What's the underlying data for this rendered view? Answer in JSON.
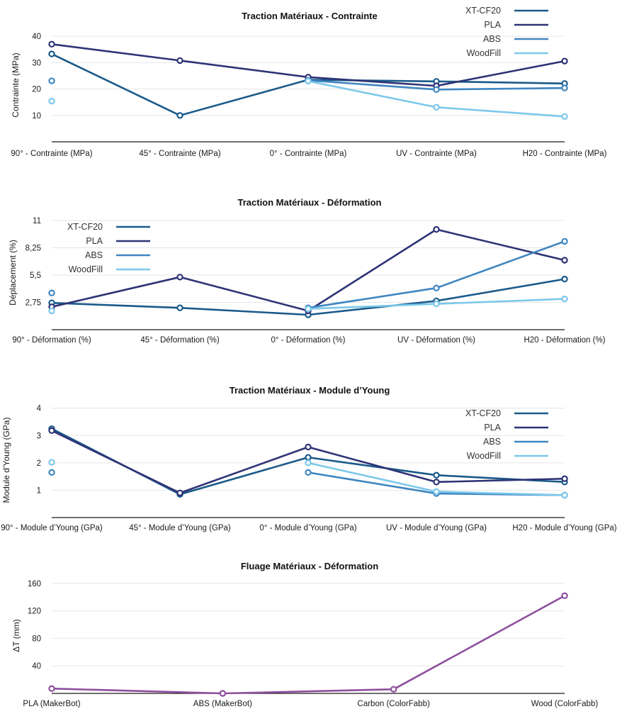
{
  "chart_data": [
    {
      "type": "line",
      "title": "Traction Matériaux - Contrainte",
      "ylabel": "Contrainte (MPa)",
      "categories": [
        "90° - Contrainte (MPa)",
        "45° - Contrainte (MPa)",
        "0° - Contrainte (MPa)",
        "UV - Contrainte (MPa)",
        "H20 - Contrainte (MPa)"
      ],
      "yticks": [
        {
          "v": 10,
          "label": "10"
        },
        {
          "v": 20,
          "label": "20"
        },
        {
          "v": 30,
          "label": "30"
        },
        {
          "v": 40,
          "label": "40"
        }
      ],
      "ylim": [
        0,
        43
      ],
      "grid": true,
      "legend": "top-right",
      "series": [
        {
          "name": "XT-CF20",
          "color": "#1a5a8a",
          "values": [
            33.3,
            10.0,
            23.5,
            22.9,
            22.1
          ]
        },
        {
          "name": "PLA",
          "color": "#2e3476",
          "values": [
            37.0,
            30.8,
            24.5,
            21.2,
            30.6
          ]
        },
        {
          "name": "ABS",
          "color": "#3f86c1",
          "values": [
            23.1,
            null,
            23.3,
            19.8,
            20.4
          ]
        },
        {
          "name": "WoodFill",
          "color": "#7cc8eb",
          "values": [
            15.4,
            null,
            23.0,
            13.1,
            9.6
          ]
        }
      ]
    },
    {
      "type": "line",
      "title": "Traction Matériaux - Déformation",
      "ylabel": "Déplacement (%)",
      "categories": [
        "90° - Déformation (%)",
        "45° - Déformation (%)",
        "0° - Déformation (%)",
        "UV - Déformation (%)",
        "H20 - Déformation (%)"
      ],
      "yticks": [
        {
          "v": 2.75,
          "label": "2,75"
        },
        {
          "v": 5.5,
          "label": "5,5"
        },
        {
          "v": 8.25,
          "label": "8,25"
        },
        {
          "v": 11,
          "label": "11"
        }
      ],
      "ylim": [
        0,
        11.5
      ],
      "grid": true,
      "legend": "top-left",
      "series": [
        {
          "name": "XT-CF20",
          "color": "#1a5a8a",
          "values": [
            2.7,
            2.2,
            1.5,
            2.9,
            5.1
          ]
        },
        {
          "name": "PLA",
          "color": "#2e3476",
          "values": [
            2.3,
            5.3,
            1.9,
            10.1,
            7.0
          ]
        },
        {
          "name": "ABS",
          "color": "#3f86c1",
          "values": [
            3.7,
            null,
            2.2,
            4.2,
            8.9
          ]
        },
        {
          "name": "WoodFill",
          "color": "#7cc8eb",
          "values": [
            1.9,
            null,
            2.1,
            2.6,
            3.1
          ]
        }
      ]
    },
    {
      "type": "line",
      "title": "Traction Matériaux - Module d’Young",
      "ylabel": "Module d’Young (GPa)",
      "categories": [
        "90° - Module d’Young (GPa)",
        "45° - Module d’Young (GPa)",
        "0° - Module d’Young (GPa)",
        "UV - Module d’Young (GPa)",
        "H20 - Module d’Young (GPa)"
      ],
      "yticks": [
        {
          "v": 1,
          "label": "1"
        },
        {
          "v": 2,
          "label": "2"
        },
        {
          "v": 3,
          "label": "3"
        },
        {
          "v": 4,
          "label": "4"
        }
      ],
      "ylim": [
        0,
        4.2
      ],
      "grid": true,
      "legend": "top-right",
      "series": [
        {
          "name": "XT-CF20",
          "color": "#1a5a8a",
          "values": [
            3.25,
            0.85,
            2.2,
            1.55,
            1.3
          ]
        },
        {
          "name": "PLA",
          "color": "#2e3476",
          "values": [
            3.18,
            0.9,
            2.58,
            1.3,
            1.42
          ]
        },
        {
          "name": "ABS",
          "color": "#3f86c1",
          "values": [
            1.65,
            null,
            1.65,
            0.88,
            0.82
          ]
        },
        {
          "name": "WoodFill",
          "color": "#7cc8eb",
          "values": [
            2.02,
            null,
            2.0,
            0.95,
            0.82
          ]
        }
      ]
    },
    {
      "type": "line",
      "title": "Fluage Matériaux - Déformation",
      "ylabel": "ΔT (mm)",
      "categories": [
        "PLA (MakerBot)",
        "ABS (MakerBot)",
        "Carbon (ColorFabb)",
        "Wood (ColorFabb)"
      ],
      "yticks": [
        {
          "v": 40,
          "label": "40"
        },
        {
          "v": 80,
          "label": "80"
        },
        {
          "v": 120,
          "label": "120"
        },
        {
          "v": 160,
          "label": "160"
        }
      ],
      "ylim": [
        0,
        168
      ],
      "grid": true,
      "legend": "none",
      "series": [
        {
          "color": "#8e4f9e",
          "values": [
            7.0,
            0.0,
            6.0,
            142.0
          ]
        }
      ]
    }
  ]
}
